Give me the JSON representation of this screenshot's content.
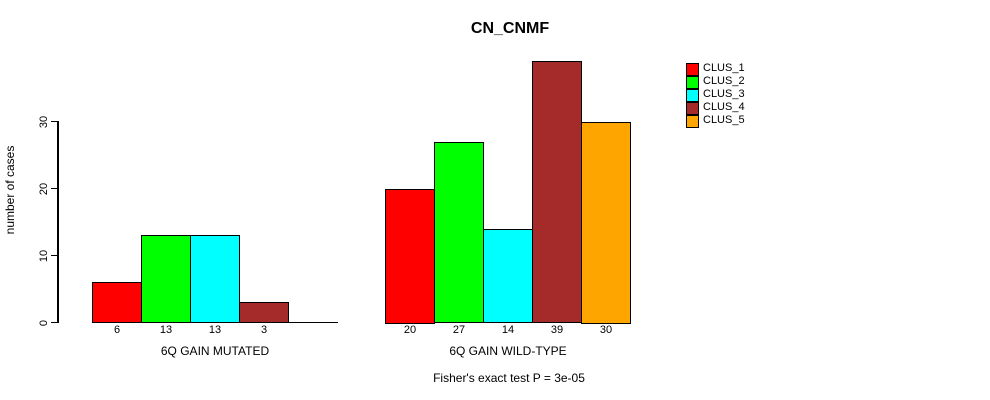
{
  "chart_data": {
    "type": "bar",
    "title": "CN_CNMF",
    "ylabel": "number of cases",
    "xlabel": "",
    "yticks": [
      0,
      10,
      20,
      30
    ],
    "ylim": [
      0,
      40
    ],
    "grid": false,
    "legend_position": "right",
    "categories": [
      "6Q GAIN MUTATED",
      "6Q GAIN WILD-TYPE"
    ],
    "series": [
      {
        "name": "CLUS_1",
        "color": "#FF0000",
        "values": [
          6,
          20
        ]
      },
      {
        "name": "CLUS_2",
        "color": "#00FF00",
        "values": [
          13,
          27
        ]
      },
      {
        "name": "CLUS_3",
        "color": "#00FFFF",
        "values": [
          13,
          14
        ]
      },
      {
        "name": "CLUS_4",
        "color": "#A52A2A",
        "values": [
          3,
          39
        ]
      },
      {
        "name": "CLUS_5",
        "color": "#FFA500",
        "values": [
          0,
          30
        ]
      }
    ],
    "bar_value_labels": [
      [
        "6",
        "13",
        "13",
        "3",
        ""
      ],
      [
        "20",
        "27",
        "14",
        "39",
        "30"
      ]
    ],
    "annotation": "Fisher's exact test P = 3e-05"
  }
}
